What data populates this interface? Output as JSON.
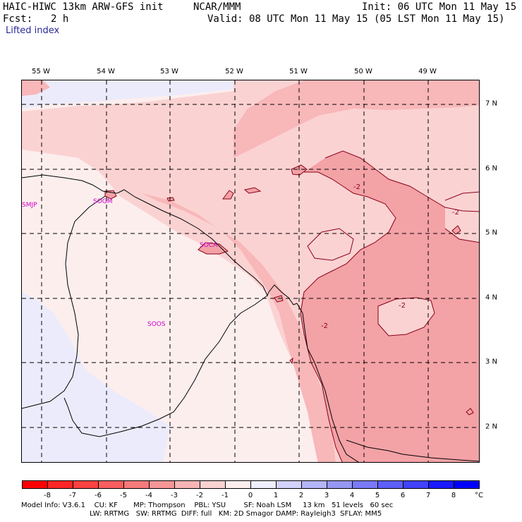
{
  "header": {
    "model": "HAIC-HIWC 13km ARW-GFS init",
    "org": "NCAR/MMM",
    "init": "Init: 06 UTC Mon 11 May 15",
    "fcst_label": "Fcst:",
    "fcst_value": "2 h",
    "valid": "Valid: 08 UTC Mon 11 May 15 (05 LST Mon 11 May 15)",
    "field": "Lifted index"
  },
  "map": {
    "longitude_labels": [
      "55 W",
      "54 W",
      "53 W",
      "52 W",
      "51 W",
      "50 W",
      "49 W"
    ],
    "latitude_labels": [
      "7 N",
      "6 N",
      "5 N",
      "4 N",
      "3 N",
      "2 N"
    ],
    "stations": [
      "SMJP",
      "SOGM",
      "SOCA",
      "SOOS"
    ],
    "contour_labels": [
      "-2",
      "-2",
      "-2",
      "-2"
    ],
    "colors": {
      "very_light": "#fdeeee",
      "light": "#fbd2d2",
      "medium": "#f8b7b9",
      "dark": "#f3a2a6",
      "pale_blue": "#ebebfb",
      "contour_line": "#8a0018"
    }
  },
  "colorbar": {
    "unit": "°C",
    "ticks": [
      "-8",
      "-7",
      "-6",
      "-5",
      "-4",
      "-3",
      "-2",
      "-1",
      "0",
      "1",
      "2",
      "3",
      "4",
      "5",
      "6",
      "7",
      "8"
    ],
    "colors": [
      "#ff0000",
      "#fd2626",
      "#fb4242",
      "#f95e5e",
      "#f77a7a",
      "#f59696",
      "#f8b4b4",
      "#fbd2d2",
      "#fdeeee",
      "#eeeefd",
      "#d2d2fb",
      "#b4b4f8",
      "#9696f5",
      "#7a7af7",
      "#5e5ef9",
      "#4242fb",
      "#1a1afd",
      "#0000ff"
    ]
  },
  "footer": {
    "line1": "Model Info: V3.6.1    CU: KF       MP: Thompson    PBL: YSU        SF: Noah LSM     13 km   51 levels   60 sec",
    "line2": "LW: RRTMG   SW: RRTMG  DIFF: full   KM: 2D Smagor DAMP: Rayleigh3  SFLAY: MM5"
  }
}
